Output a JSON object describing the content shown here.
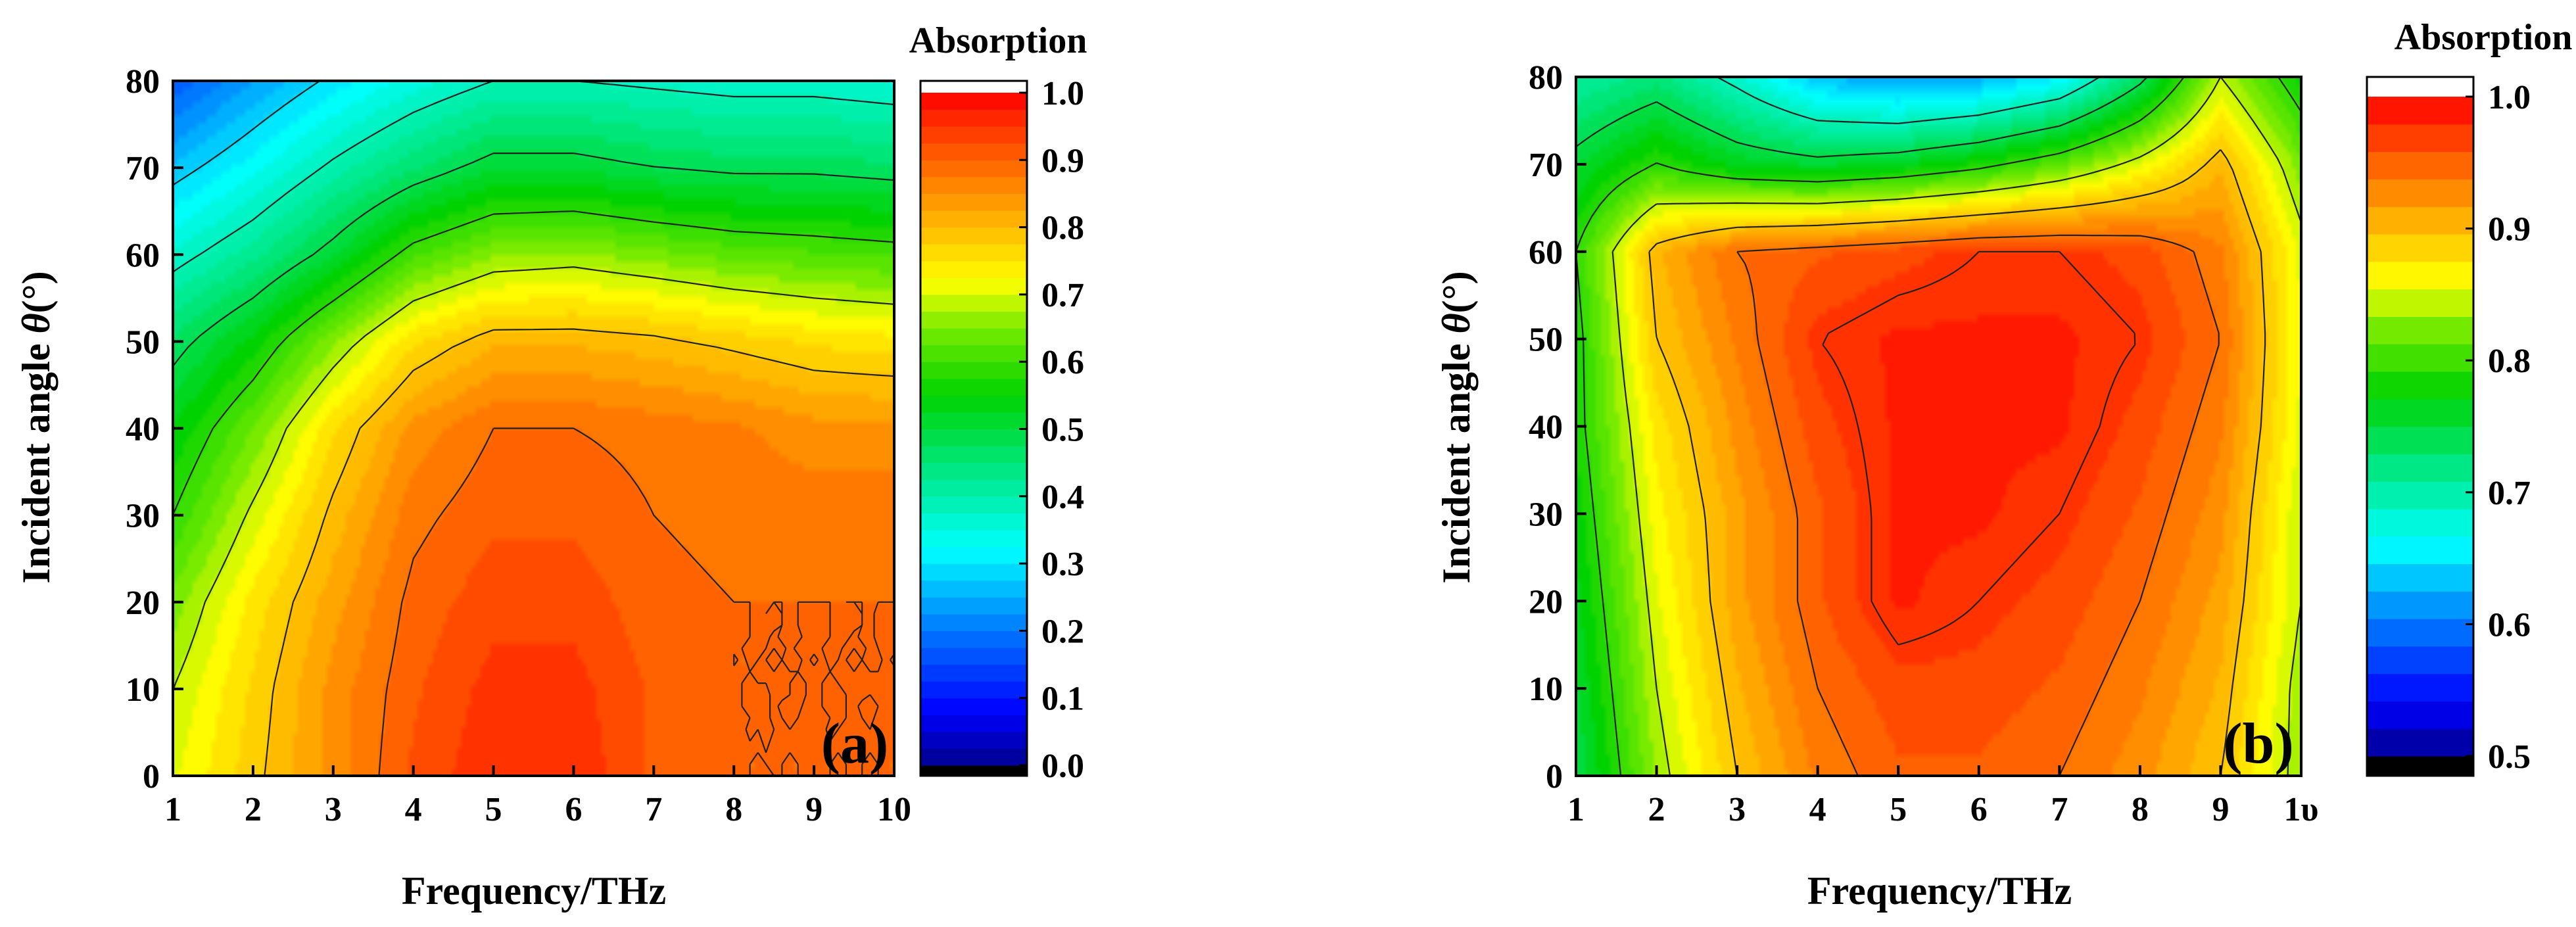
{
  "chart_data": [
    {
      "type": "heatmap",
      "panel_label": "(a)",
      "xlabel": "Frequency/THz",
      "ylabel_prefix": "Incident angle ",
      "ylabel_symbol": "θ",
      "ylabel_suffix": "(°)",
      "x_ticks": [
        "1",
        "2",
        "3",
        "4",
        "5",
        "6",
        "7",
        "8",
        "9",
        "10"
      ],
      "y_ticks": [
        "0",
        "10",
        "20",
        "30",
        "40",
        "50",
        "60",
        "70",
        "80"
      ],
      "xlim": [
        1,
        10
      ],
      "ylim": [
        0,
        80
      ],
      "colorbar": {
        "title": "Absorption",
        "range": [
          0.0,
          1.0
        ],
        "ticks": [
          "0.0",
          "0.1",
          "0.2",
          "0.3",
          "0.4",
          "0.5",
          "0.6",
          "0.7",
          "0.8",
          "0.9",
          "1.0"
        ]
      },
      "x": [
        1,
        2,
        3,
        4,
        5,
        6,
        7,
        8,
        9,
        10
      ],
      "y": [
        0,
        10,
        20,
        30,
        40,
        50,
        60,
        70,
        80
      ],
      "z": [
        [
          0.72,
          0.79,
          0.86,
          0.93,
          0.97,
          0.97,
          0.92,
          0.9,
          0.9,
          0.9
        ],
        [
          0.7,
          0.78,
          0.86,
          0.92,
          0.96,
          0.96,
          0.92,
          0.9,
          0.9,
          0.9
        ],
        [
          0.66,
          0.76,
          0.84,
          0.91,
          0.94,
          0.94,
          0.91,
          0.9,
          0.9,
          0.9
        ],
        [
          0.6,
          0.71,
          0.81,
          0.89,
          0.92,
          0.92,
          0.9,
          0.89,
          0.89,
          0.89
        ],
        [
          0.55,
          0.65,
          0.77,
          0.86,
          0.9,
          0.9,
          0.89,
          0.88,
          0.86,
          0.86
        ],
        [
          0.48,
          0.56,
          0.67,
          0.77,
          0.82,
          0.82,
          0.81,
          0.79,
          0.77,
          0.76
        ],
        [
          0.38,
          0.44,
          0.52,
          0.62,
          0.67,
          0.68,
          0.66,
          0.64,
          0.63,
          0.62
        ],
        [
          0.28,
          0.34,
          0.41,
          0.47,
          0.52,
          0.52,
          0.5,
          0.49,
          0.49,
          0.48
        ],
        [
          0.18,
          0.25,
          0.31,
          0.36,
          0.4,
          0.4,
          0.39,
          0.38,
          0.38,
          0.37
        ]
      ],
      "contour_levels": [
        0.3,
        0.4,
        0.5,
        0.6,
        0.7,
        0.8,
        0.9
      ]
    },
    {
      "type": "heatmap",
      "panel_label": "(b)",
      "xlabel": "Frequency/THz",
      "ylabel_prefix": "Incident angle ",
      "ylabel_symbol": "θ",
      "ylabel_suffix": "(°)",
      "x_ticks": [
        "1",
        "2",
        "3",
        "4",
        "5",
        "6",
        "7",
        "8",
        "9",
        "1υ"
      ],
      "y_ticks": [
        "0",
        "10",
        "20",
        "30",
        "40",
        "50",
        "60",
        "70",
        "80"
      ],
      "xlim": [
        1,
        10
      ],
      "ylim": [
        0,
        80
      ],
      "colorbar": {
        "title": "Absorption",
        "range": [
          0.5,
          1.0
        ],
        "ticks": [
          "0.5",
          "0.6",
          "0.7",
          "0.8",
          "0.9",
          "1.0"
        ]
      },
      "x": [
        1,
        2,
        3,
        4,
        5,
        6,
        7,
        8,
        9,
        10
      ],
      "y": [
        0,
        10,
        20,
        30,
        40,
        50,
        60,
        70,
        80
      ],
      "z": [
        [
          0.75,
          0.84,
          0.9,
          0.94,
          0.96,
          0.96,
          0.95,
          0.93,
          0.9,
          0.84
        ],
        [
          0.76,
          0.85,
          0.91,
          0.95,
          0.97,
          0.97,
          0.96,
          0.94,
          0.91,
          0.84
        ],
        [
          0.77,
          0.86,
          0.92,
          0.96,
          0.99,
          0.98,
          0.97,
          0.95,
          0.92,
          0.85
        ],
        [
          0.78,
          0.87,
          0.92,
          0.96,
          0.99,
          0.99,
          0.98,
          0.96,
          0.93,
          0.85
        ],
        [
          0.79,
          0.88,
          0.93,
          0.97,
          0.99,
          0.99,
          0.99,
          0.97,
          0.94,
          0.86
        ],
        [
          0.79,
          0.9,
          0.94,
          0.98,
          0.99,
          0.99,
          0.99,
          0.98,
          0.95,
          0.86
        ],
        [
          0.8,
          0.91,
          0.95,
          0.96,
          0.97,
          0.98,
          0.98,
          0.97,
          0.94,
          0.86
        ],
        [
          0.76,
          0.8,
          0.77,
          0.76,
          0.77,
          0.79,
          0.82,
          0.86,
          0.91,
          0.83
        ],
        [
          0.71,
          0.73,
          0.69,
          0.64,
          0.62,
          0.63,
          0.66,
          0.74,
          0.85,
          0.78
        ]
      ],
      "contour_levels": [
        0.7,
        0.75,
        0.8,
        0.85,
        0.9,
        0.95,
        0.98
      ]
    }
  ]
}
